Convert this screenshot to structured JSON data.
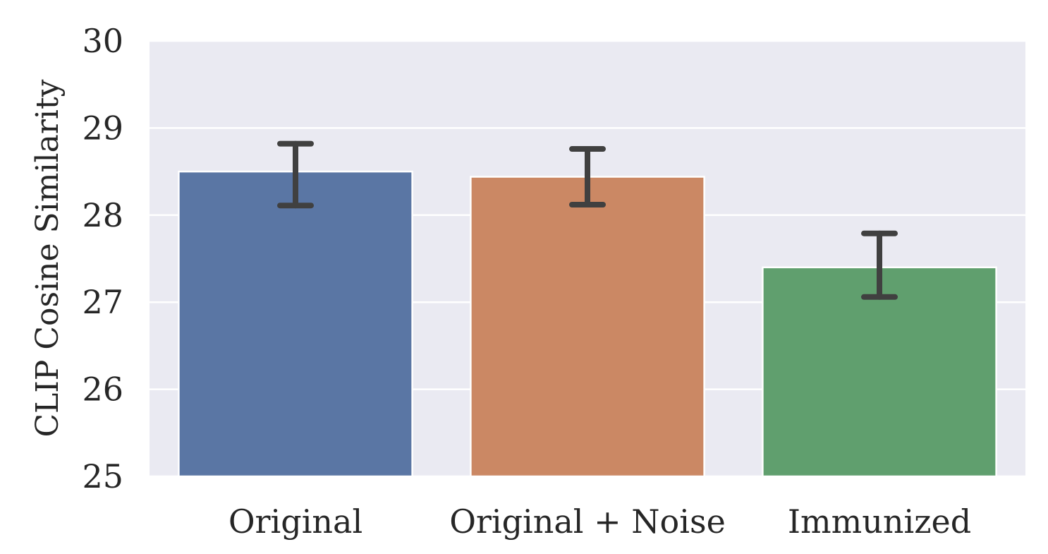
{
  "chart_data": {
    "type": "bar",
    "title": "",
    "xlabel": "",
    "ylabel": "CLIP Cosine Similarity",
    "ylim": [
      25,
      30
    ],
    "yticks": [
      25,
      26,
      27,
      28,
      29,
      30
    ],
    "grid": true,
    "legend": "none",
    "background": "#EAEAF2",
    "categories": [
      "Original",
      "Original + Noise",
      "Immunized"
    ],
    "values": [
      28.5,
      28.44,
      27.4
    ],
    "error_low": [
      28.11,
      28.12,
      27.06
    ],
    "error_high": [
      28.82,
      28.76,
      27.79
    ],
    "colors": [
      "#5A76A4",
      "#CB8864",
      "#609F6E"
    ],
    "error_color": "#404040"
  }
}
